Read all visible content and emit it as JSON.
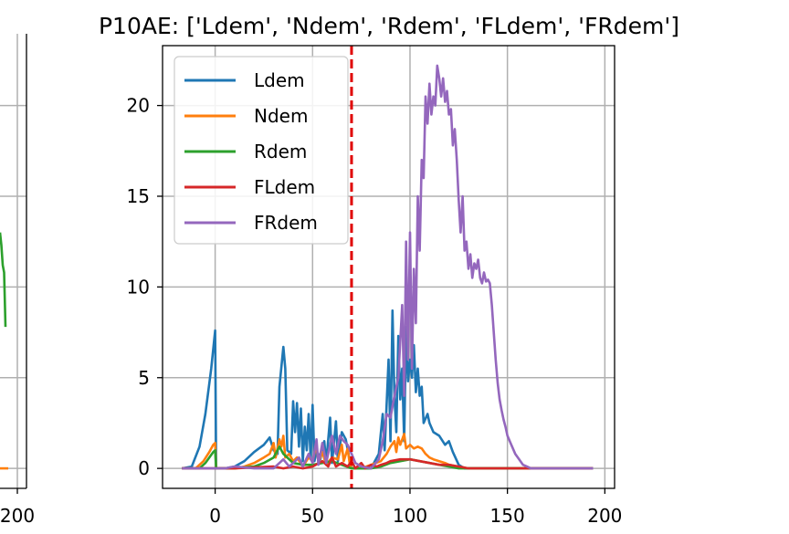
{
  "title": "P10AE: ['Ldem', 'Ndem', 'Rdem', 'FLdem', 'FRdem']",
  "chart_data": {
    "type": "line",
    "title": "P10AE: ['Ldem', 'Ndem', 'Rdem', 'FLdem', 'FRdem']",
    "xlabel": "",
    "ylabel": "",
    "xlim": [
      -27,
      205
    ],
    "ylim": [
      -1.1,
      23.3
    ],
    "xticks": [
      0,
      50,
      100,
      150,
      200
    ],
    "yticks": [
      0,
      5,
      10,
      15,
      20
    ],
    "grid": true,
    "legend_position": "top-left",
    "vline": {
      "x": 70,
      "style": "dashed",
      "color": "#e00000"
    },
    "series": [
      {
        "name": "Ldem",
        "color": "#1f77b4",
        "points": [
          [
            -17,
            0
          ],
          [
            -12,
            0.1
          ],
          [
            -8,
            1.2
          ],
          [
            -5,
            3
          ],
          [
            -2,
            5.5
          ],
          [
            0,
            7.6
          ],
          [
            0.5,
            0
          ],
          [
            5,
            0
          ],
          [
            10,
            0.1
          ],
          [
            15,
            0.4
          ],
          [
            20,
            0.9
          ],
          [
            25,
            1.3
          ],
          [
            28,
            1.7
          ],
          [
            30,
            1
          ],
          [
            32,
            0.8
          ],
          [
            33,
            4.5
          ],
          [
            35,
            6.7
          ],
          [
            36,
            5.5
          ],
          [
            37,
            1
          ],
          [
            39,
            0.8
          ],
          [
            40,
            3.7
          ],
          [
            41,
            2
          ],
          [
            42,
            3.6
          ],
          [
            43,
            1.2
          ],
          [
            44,
            3.3
          ],
          [
            45,
            0.4
          ],
          [
            46,
            2.3
          ],
          [
            47,
            1
          ],
          [
            48,
            3
          ],
          [
            49,
            0.5
          ],
          [
            50,
            3.5
          ],
          [
            51,
            0.4
          ],
          [
            52,
            1
          ],
          [
            54,
            0.5
          ],
          [
            56,
            1.5
          ],
          [
            57,
            0.3
          ],
          [
            59,
            2.8
          ],
          [
            60,
            0.3
          ],
          [
            62,
            2.6
          ],
          [
            63,
            0.4
          ],
          [
            65,
            2
          ],
          [
            67,
            1.6
          ],
          [
            69,
            0.5
          ],
          [
            70,
            0
          ],
          [
            75,
            0
          ],
          [
            80,
            0
          ],
          [
            84,
            0.8
          ],
          [
            86,
            3
          ],
          [
            87,
            1
          ],
          [
            89,
            6
          ],
          [
            90,
            1.5
          ],
          [
            91,
            8.7
          ],
          [
            92,
            4
          ],
          [
            93,
            2
          ],
          [
            94,
            7.3
          ],
          [
            95,
            3.8
          ],
          [
            96,
            5.5
          ],
          [
            97,
            1.5
          ],
          [
            98,
            7.8
          ],
          [
            99,
            4.8
          ],
          [
            100,
            6
          ],
          [
            101,
            5
          ],
          [
            102,
            6.8
          ],
          [
            103,
            4.2
          ],
          [
            104,
            5.5
          ],
          [
            105,
            4
          ],
          [
            106,
            4.5
          ],
          [
            107,
            2.5
          ],
          [
            109,
            3
          ],
          [
            110,
            2.5
          ],
          [
            112,
            2
          ],
          [
            115,
            1.8
          ],
          [
            118,
            1.3
          ],
          [
            120,
            1.5
          ],
          [
            122,
            0.9
          ],
          [
            125,
            0.2
          ],
          [
            128,
            0
          ],
          [
            135,
            0
          ],
          [
            150,
            0
          ],
          [
            170,
            0
          ],
          [
            194,
            0
          ]
        ]
      },
      {
        "name": "Ndem",
        "color": "#ff7f0e",
        "points": [
          [
            -17,
            0
          ],
          [
            -10,
            0
          ],
          [
            -6,
            0.4
          ],
          [
            -3,
            0.9
          ],
          [
            -1,
            1.3
          ],
          [
            0,
            1.4
          ],
          [
            0.5,
            0
          ],
          [
            10,
            0
          ],
          [
            15,
            0.1
          ],
          [
            20,
            0.3
          ],
          [
            25,
            0.6
          ],
          [
            28,
            0.8
          ],
          [
            30,
            1.4
          ],
          [
            31,
            0.6
          ],
          [
            33,
            1.6
          ],
          [
            34,
            1.2
          ],
          [
            35,
            1.8
          ],
          [
            36,
            0.6
          ],
          [
            38,
            0.8
          ],
          [
            40,
            0.4
          ],
          [
            42,
            0.6
          ],
          [
            45,
            0.1
          ],
          [
            48,
            0.6
          ],
          [
            50,
            0.4
          ],
          [
            52,
            1.3
          ],
          [
            53,
            0.3
          ],
          [
            55,
            0.9
          ],
          [
            57,
            0.2
          ],
          [
            60,
            0.6
          ],
          [
            63,
            0.5
          ],
          [
            65,
            1.3
          ],
          [
            66,
            0.4
          ],
          [
            68,
            1.1
          ],
          [
            69,
            0.3
          ],
          [
            70,
            0
          ],
          [
            75,
            0
          ],
          [
            80,
            0.2
          ],
          [
            85,
            0.4
          ],
          [
            88,
            0.8
          ],
          [
            90,
            1.2
          ],
          [
            92,
            1.5
          ],
          [
            93,
            0.9
          ],
          [
            94,
            1.7
          ],
          [
            95,
            1.3
          ],
          [
            97,
            1.9
          ],
          [
            98,
            1.1
          ],
          [
            100,
            1.3
          ],
          [
            102,
            1.1
          ],
          [
            104,
            1.2
          ],
          [
            106,
            1.1
          ],
          [
            108,
            0.8
          ],
          [
            110,
            0.6
          ],
          [
            112,
            0.5
          ],
          [
            115,
            0.4
          ],
          [
            118,
            0.3
          ],
          [
            120,
            0.2
          ],
          [
            125,
            0.1
          ],
          [
            130,
            0
          ],
          [
            150,
            0
          ],
          [
            194,
            0
          ]
        ]
      },
      {
        "name": "Rdem",
        "color": "#2ca02c",
        "points": [
          [
            -17,
            0
          ],
          [
            -8,
            0
          ],
          [
            -5,
            0.3
          ],
          [
            -3,
            0.6
          ],
          [
            -1,
            0.9
          ],
          [
            0,
            1
          ],
          [
            0.5,
            0
          ],
          [
            10,
            0
          ],
          [
            20,
            0.1
          ],
          [
            25,
            0.3
          ],
          [
            30,
            0.6
          ],
          [
            33,
            1.2
          ],
          [
            35,
            0.8
          ],
          [
            38,
            0.5
          ],
          [
            40,
            0.3
          ],
          [
            45,
            0.2
          ],
          [
            50,
            0.2
          ],
          [
            55,
            0.3
          ],
          [
            60,
            0.4
          ],
          [
            65,
            0.2
          ],
          [
            70,
            0
          ],
          [
            80,
            0
          ],
          [
            85,
            0.1
          ],
          [
            90,
            0.3
          ],
          [
            95,
            0.4
          ],
          [
            100,
            0.5
          ],
          [
            105,
            0.4
          ],
          [
            110,
            0.3
          ],
          [
            115,
            0.2
          ],
          [
            120,
            0.1
          ],
          [
            125,
            0
          ],
          [
            150,
            0
          ],
          [
            194,
            0
          ]
        ]
      },
      {
        "name": "FLdem",
        "color": "#d62728",
        "points": [
          [
            -17,
            0
          ],
          [
            10,
            0
          ],
          [
            30,
            0.1
          ],
          [
            35,
            0
          ],
          [
            40,
            0.1
          ],
          [
            45,
            0
          ],
          [
            50,
            0.1
          ],
          [
            55,
            0.4
          ],
          [
            58,
            0.1
          ],
          [
            60,
            0.6
          ],
          [
            62,
            0.1
          ],
          [
            65,
            0.3
          ],
          [
            68,
            0.1
          ],
          [
            70,
            0.4
          ],
          [
            72,
            0
          ],
          [
            75,
            0.3
          ],
          [
            77,
            0
          ],
          [
            80,
            0.2
          ],
          [
            83,
            0.1
          ],
          [
            85,
            0.2
          ],
          [
            88,
            0.3
          ],
          [
            90,
            0.4
          ],
          [
            95,
            0.5
          ],
          [
            100,
            0.5
          ],
          [
            105,
            0.4
          ],
          [
            110,
            0.3
          ],
          [
            115,
            0.2
          ],
          [
            120,
            0.2
          ],
          [
            125,
            0.1
          ],
          [
            130,
            0
          ],
          [
            150,
            0
          ],
          [
            194,
            0
          ]
        ]
      },
      {
        "name": "FRdem",
        "color": "#9467bd",
        "points": [
          [
            -17,
            0
          ],
          [
            5,
            0
          ],
          [
            10,
            0.1
          ],
          [
            20,
            0
          ],
          [
            30,
            0
          ],
          [
            35,
            0.5
          ],
          [
            38,
            0.1
          ],
          [
            40,
            0.3
          ],
          [
            43,
            0.6
          ],
          [
            45,
            0.1
          ],
          [
            48,
            0.8
          ],
          [
            50,
            0.3
          ],
          [
            52,
            1.6
          ],
          [
            53,
            0.2
          ],
          [
            55,
            1.4
          ],
          [
            57,
            0.3
          ],
          [
            60,
            1.8
          ],
          [
            62,
            0.8
          ],
          [
            64,
            1.8
          ],
          [
            66,
            1.5
          ],
          [
            68,
            1.3
          ],
          [
            70,
            0.8
          ],
          [
            72,
            0.3
          ],
          [
            75,
            0.1
          ],
          [
            80,
            0
          ],
          [
            84,
            0.5
          ],
          [
            86,
            1.5
          ],
          [
            88,
            3
          ],
          [
            90,
            2.8
          ],
          [
            92,
            4
          ],
          [
            94,
            5
          ],
          [
            96,
            9
          ],
          [
            97,
            4
          ],
          [
            98,
            12.5
          ],
          [
            99,
            6
          ],
          [
            100,
            13
          ],
          [
            101,
            5.5
          ],
          [
            102,
            11
          ],
          [
            103,
            8
          ],
          [
            104,
            15
          ],
          [
            105,
            12
          ],
          [
            106,
            17
          ],
          [
            107,
            16
          ],
          [
            108,
            20.5
          ],
          [
            109,
            19
          ],
          [
            110,
            21.2
          ],
          [
            111,
            19.5
          ],
          [
            112,
            20.5
          ],
          [
            113,
            20
          ],
          [
            114,
            22.2
          ],
          [
            115,
            21.5
          ],
          [
            116,
            20.5
          ],
          [
            117,
            21.5
          ],
          [
            118,
            20.2
          ],
          [
            119,
            20.8
          ],
          [
            120,
            19.5
          ],
          [
            121,
            19.8
          ],
          [
            122,
            17.8
          ],
          [
            123,
            18.7
          ],
          [
            124,
            17
          ],
          [
            125,
            14.8
          ],
          [
            126,
            13
          ],
          [
            127,
            15
          ],
          [
            128,
            12
          ],
          [
            129,
            12.5
          ],
          [
            130,
            11
          ],
          [
            131,
            11.8
          ],
          [
            132,
            10.5
          ],
          [
            133,
            11.3
          ],
          [
            134,
            11
          ],
          [
            135,
            11.5
          ],
          [
            136,
            10.5
          ],
          [
            137,
            10.2
          ],
          [
            138,
            10.8
          ],
          [
            139,
            10.3
          ],
          [
            140,
            10.4
          ],
          [
            141,
            10.2
          ],
          [
            142,
            9
          ],
          [
            143,
            7.5
          ],
          [
            144,
            6
          ],
          [
            145,
            4.7
          ],
          [
            146,
            3.8
          ],
          [
            147,
            3.2
          ],
          [
            148,
            2.7
          ],
          [
            149,
            2.3
          ],
          [
            150,
            1.8
          ],
          [
            152,
            1.3
          ],
          [
            154,
            0.8
          ],
          [
            156,
            0.5
          ],
          [
            158,
            0.2
          ],
          [
            160,
            0.1
          ],
          [
            162,
            0
          ],
          [
            170,
            0
          ],
          [
            194,
            0
          ]
        ]
      }
    ]
  },
  "left_fragment": {
    "xtick": "200",
    "series": [
      {
        "color": "#2ca02c",
        "points": [
          [
            0,
            13
          ],
          [
            0.15,
            12.3
          ],
          [
            0.3,
            11.2
          ],
          [
            0.45,
            10.8
          ],
          [
            0.6,
            7.8
          ]
        ]
      },
      {
        "color": "#ff7f0e",
        "points": [
          [
            0,
            0
          ],
          [
            0.9,
            0
          ]
        ]
      }
    ]
  }
}
